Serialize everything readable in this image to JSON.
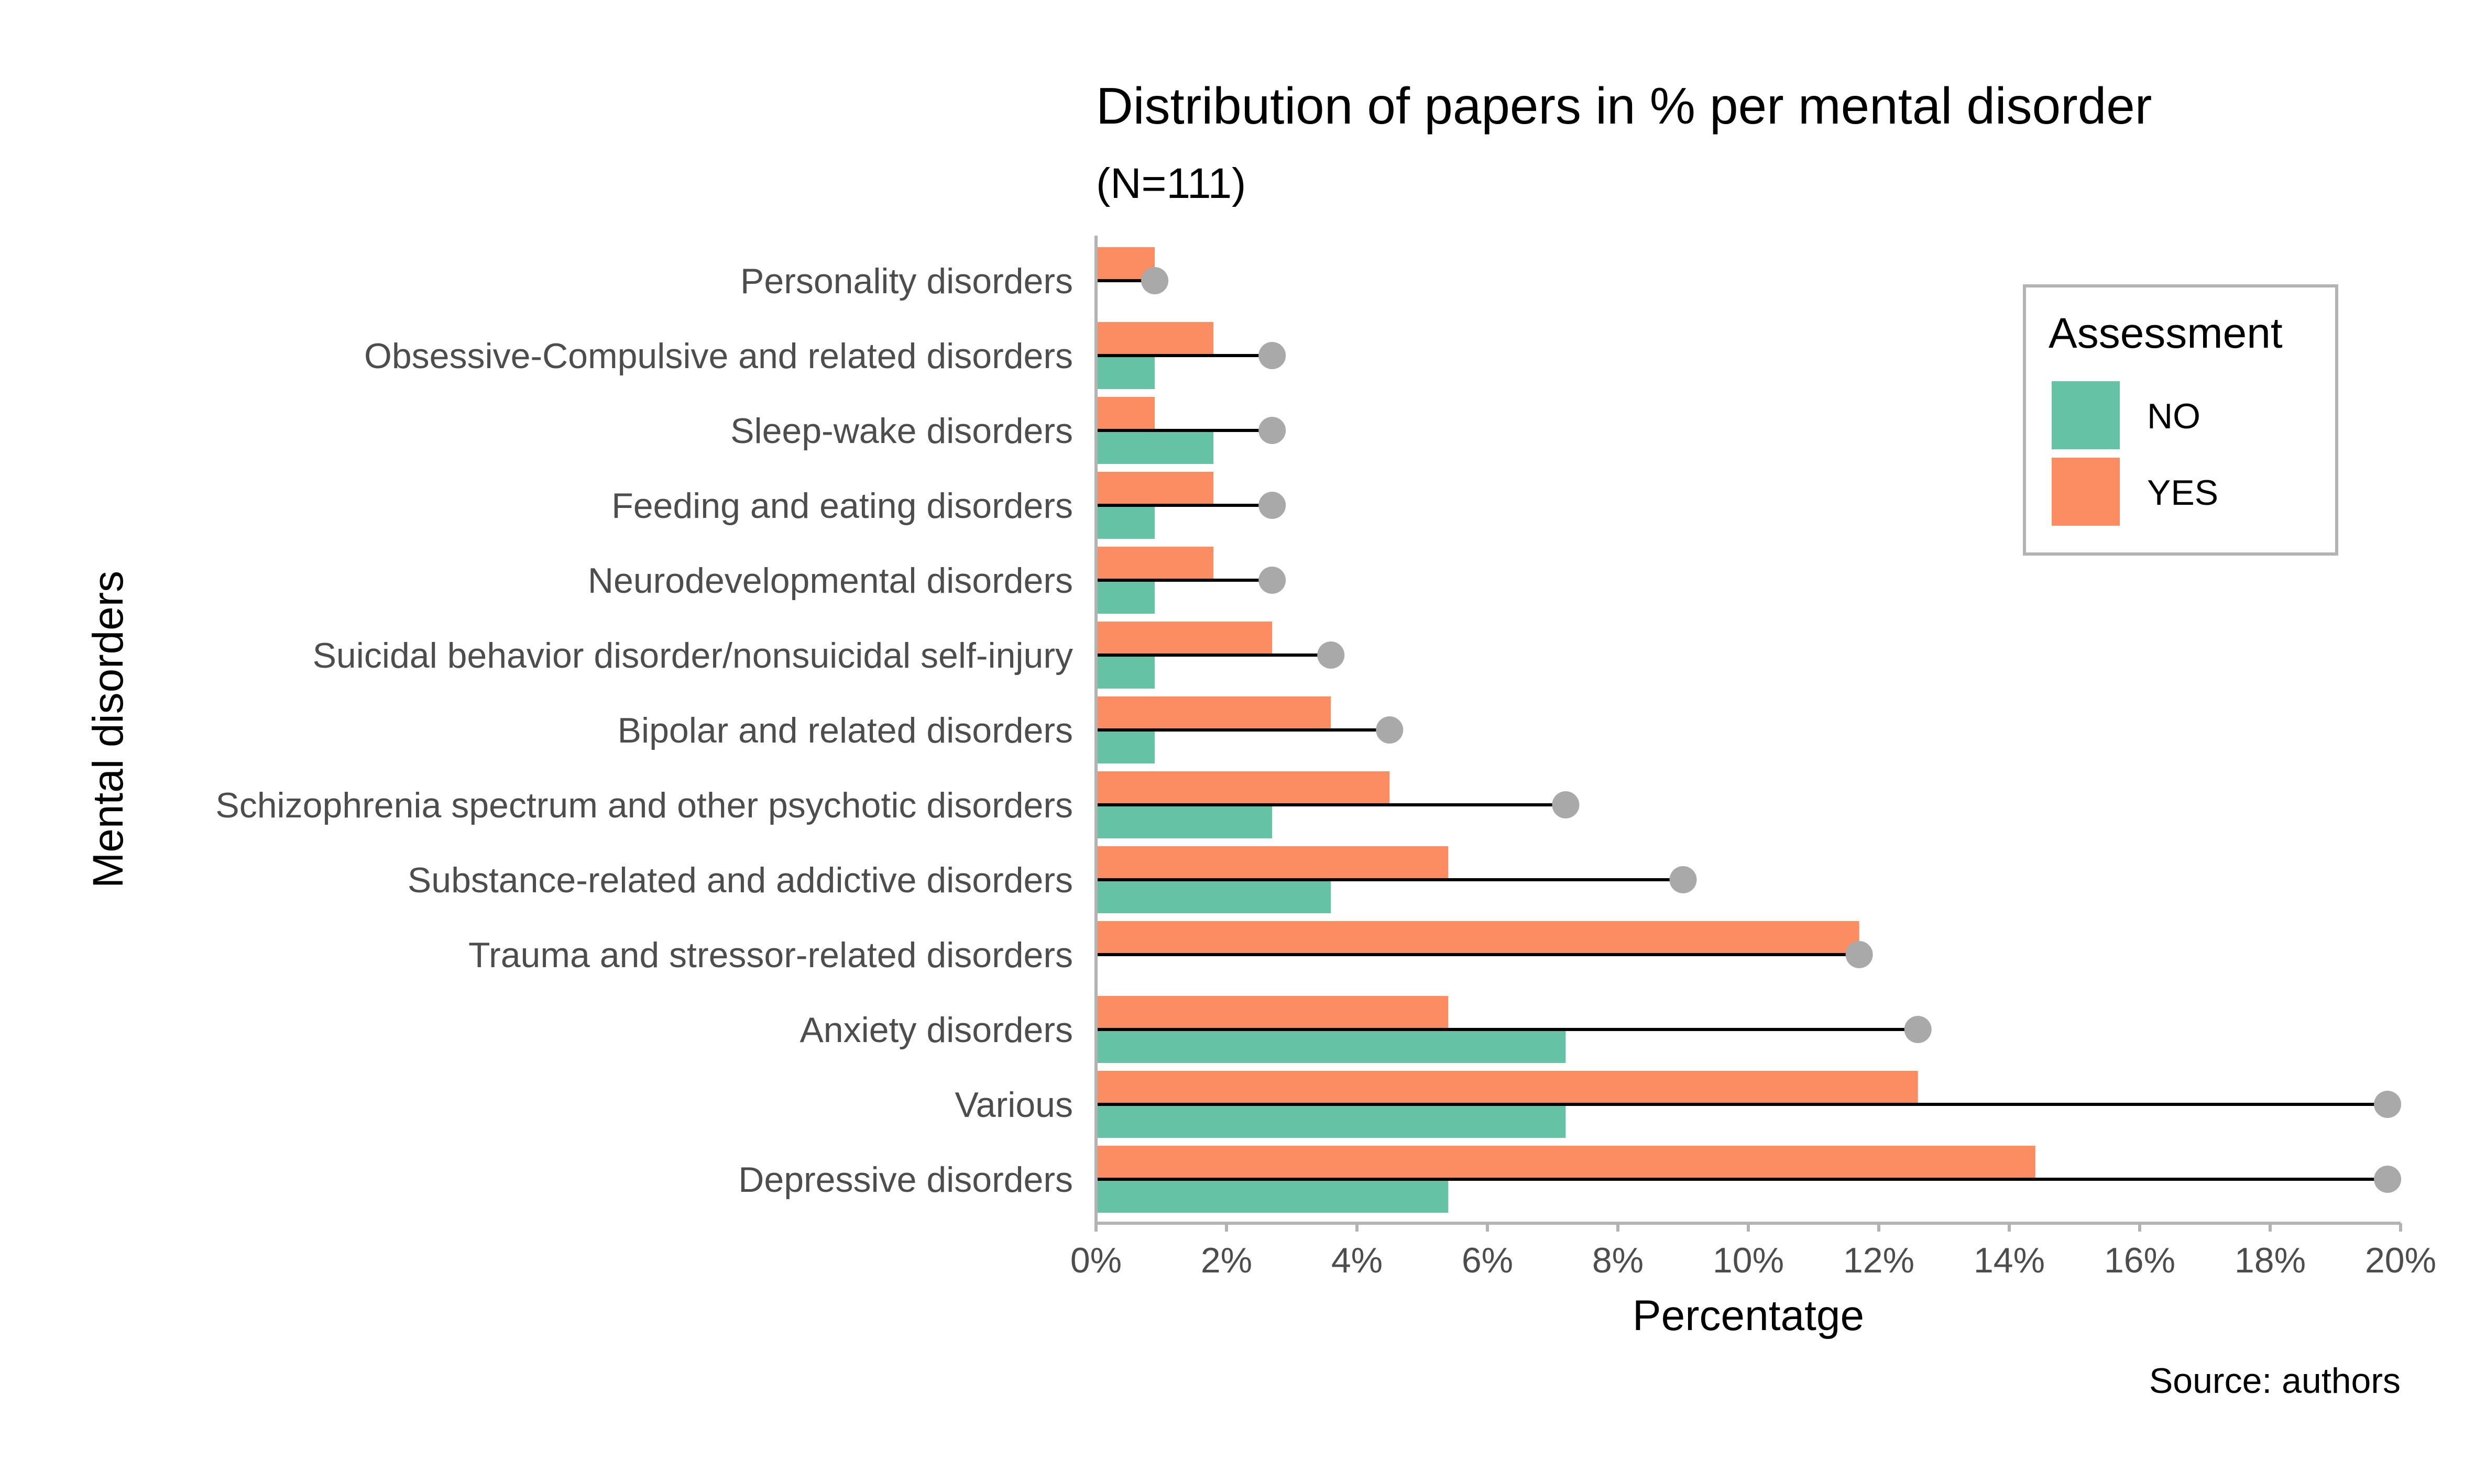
{
  "colors": {
    "no": "#66c2a5",
    "yes": "#fc8d62",
    "total": "#a9a9a9",
    "line": "#000000",
    "axis": "#b3b3b3"
  },
  "chart_data": {
    "type": "bar",
    "orientation": "horizontal",
    "title": "Distribution of papers in % per mental disorder",
    "subtitle": "(N=111)",
    "xlabel": "Percentatge",
    "ylabel": "Mental disorders",
    "caption": "Source: authors",
    "xlim": [
      0,
      20
    ],
    "xticks": [
      {
        "value": 0,
        "label": "0%"
      },
      {
        "value": 2,
        "label": "2%"
      },
      {
        "value": 4,
        "label": "4%"
      },
      {
        "value": 6,
        "label": "6%"
      },
      {
        "value": 8,
        "label": "8%"
      },
      {
        "value": 10,
        "label": "10%"
      },
      {
        "value": 12,
        "label": "12%"
      },
      {
        "value": 14,
        "label": "14%"
      },
      {
        "value": 16,
        "label": "16%"
      },
      {
        "value": 18,
        "label": "18%"
      },
      {
        "value": 20,
        "label": "20%"
      }
    ],
    "categories": [
      "Personality disorders",
      "Obsessive-Compulsive and related disorders",
      "Sleep-wake disorders",
      "Feeding and eating disorders",
      "Neurodevelopmental disorders",
      "Suicidal behavior disorder/nonsuicidal self-injury",
      "Bipolar and related disorders",
      "Schizophrenia spectrum and other psychotic disorders",
      "Substance-related and addictive disorders",
      "Trauma and stressor-related disorders",
      "Anxiety disorders",
      "Various",
      "Depressive disorders"
    ],
    "series": [
      {
        "name": "NO",
        "color_key": "no",
        "values": [
          0,
          0.9,
          1.8,
          0.9,
          0.9,
          0.9,
          0.9,
          2.7,
          3.6,
          0,
          7.2,
          7.2,
          5.4
        ]
      },
      {
        "name": "YES",
        "color_key": "yes",
        "values": [
          0.9,
          1.8,
          0.9,
          1.8,
          1.8,
          2.7,
          3.6,
          4.5,
          5.4,
          11.7,
          5.4,
          12.6,
          14.4
        ]
      }
    ],
    "totals": [
      0.9,
      2.7,
      2.7,
      2.7,
      2.7,
      3.6,
      4.5,
      7.2,
      9.0,
      11.7,
      12.6,
      19.8,
      19.8
    ],
    "legend": {
      "title": "Assessment",
      "position": "top-right"
    },
    "grid": false
  }
}
